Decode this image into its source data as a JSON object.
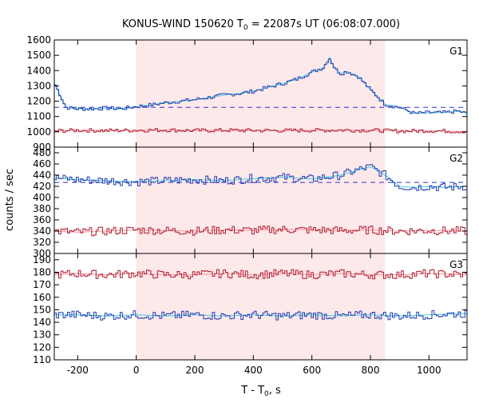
{
  "chart_data": {
    "type": "line",
    "title": {
      "main": "KONUS-WIND 150620 T",
      "sub": "0",
      "rest": " = 22087s UT (06:08:07.000)"
    },
    "xlabel": {
      "main": "T - T",
      "sub": "0",
      "rest": ", s"
    },
    "ylabel": "counts / sec",
    "xlim": [
      -280,
      1130
    ],
    "xticks": [
      -200,
      0,
      200,
      400,
      600,
      800,
      1000
    ],
    "highlight": {
      "x_start": 0,
      "x_end": 850,
      "color": "#fde8ea"
    },
    "panels": [
      {
        "label": "G1",
        "ylim": [
          900,
          1600
        ],
        "yticks": [
          900,
          1000,
          1100,
          1200,
          1300,
          1400,
          1500,
          1600
        ],
        "background": 1160,
        "background_color": "#3333cc",
        "series": [
          {
            "name": "G1 (blue)",
            "color": "#1f3fb4",
            "model_color": "#66ccdd",
            "x": [
              -280,
              -240,
              -200,
              -150,
              -100,
              -50,
              0,
              50,
              100,
              150,
              200,
              250,
              300,
              350,
              400,
              450,
              500,
              550,
              600,
              640,
              660,
              680,
              700,
              720,
              760,
              800,
              830,
              850,
              900,
              950,
              1000,
              1050,
              1100,
              1130
            ],
            "y": [
              1320,
              1160,
              1150,
              1150,
              1155,
              1150,
              1165,
              1175,
              1190,
              1200,
              1210,
              1225,
              1240,
              1250,
              1265,
              1290,
              1315,
              1345,
              1390,
              1420,
              1485,
              1410,
              1380,
              1395,
              1360,
              1275,
              1220,
              1180,
              1160,
              1120,
              1125,
              1125,
              1135,
              1120
            ]
          },
          {
            "name": "G1 (red)",
            "color": "#b01c2e",
            "model_color": "#f0a3ad",
            "x": [
              -280,
              -200,
              -100,
              0,
              100,
              200,
              300,
              400,
              500,
              600,
              700,
              800,
              900,
              1000,
              1130
            ],
            "y": [
              1005,
              1010,
              1008,
              1010,
              1012,
              1008,
              1010,
              1009,
              1008,
              1010,
              1011,
              1010,
              1005,
              1007,
              1002
            ]
          }
        ]
      },
      {
        "label": "G2",
        "ylim": [
          300,
          490
        ],
        "yticks": [
          300,
          320,
          340,
          360,
          380,
          400,
          420,
          440,
          460,
          480
        ],
        "background": 427,
        "background_color": "#3333cc",
        "series": [
          {
            "name": "G2 (blue)",
            "color": "#1f3fb4",
            "model_color": "#66ccdd",
            "x": [
              -280,
              -200,
              -100,
              0,
              100,
              200,
              300,
              400,
              500,
              600,
              700,
              750,
              800,
              850,
              900,
              950,
              1000,
              1050,
              1130
            ],
            "y": [
              435,
              432,
              430,
              428,
              430,
              432,
              430,
              434,
              436,
              433,
              440,
              448,
              455,
              440,
              420,
              418,
              420,
              418,
              420
            ]
          },
          {
            "name": "G2 (red)",
            "color": "#b01c2e",
            "model_color": "#f0a3ad",
            "x": [
              -280,
              -200,
              -100,
              0,
              100,
              200,
              300,
              400,
              500,
              600,
              700,
              800,
              900,
              1000,
              1130
            ],
            "y": [
              340,
              338,
              340,
              342,
              341,
              340,
              342,
              341,
              343,
              342,
              341,
              342,
              340,
              341,
              340
            ]
          }
        ]
      },
      {
        "label": "G3",
        "ylim": [
          110,
          195
        ],
        "yticks": [
          110,
          120,
          130,
          140,
          150,
          160,
          170,
          180,
          190
        ],
        "background": null,
        "series": [
          {
            "name": "G3 (red)",
            "color": "#b01c2e",
            "model_color": "#f0a3ad",
            "x": [
              -280,
              -200,
              -100,
              0,
              100,
              200,
              300,
              400,
              500,
              600,
              700,
              800,
              900,
              1000,
              1130
            ],
            "y": [
              178,
              179,
              178,
              179,
              178,
              178,
              179,
              178,
              179,
              178,
              179,
              178,
              178,
              179,
              178
            ]
          },
          {
            "name": "G3 (blue)",
            "color": "#1f3fb4",
            "model_color": "#66ccdd",
            "x": [
              -280,
              -200,
              -100,
              0,
              100,
              200,
              300,
              400,
              500,
              600,
              700,
              800,
              900,
              1000,
              1130
            ],
            "y": [
              146,
              146,
              145,
              146,
              145,
              146,
              145,
              146,
              145,
              146,
              145,
              146,
              145,
              146,
              147
            ]
          }
        ]
      }
    ]
  }
}
